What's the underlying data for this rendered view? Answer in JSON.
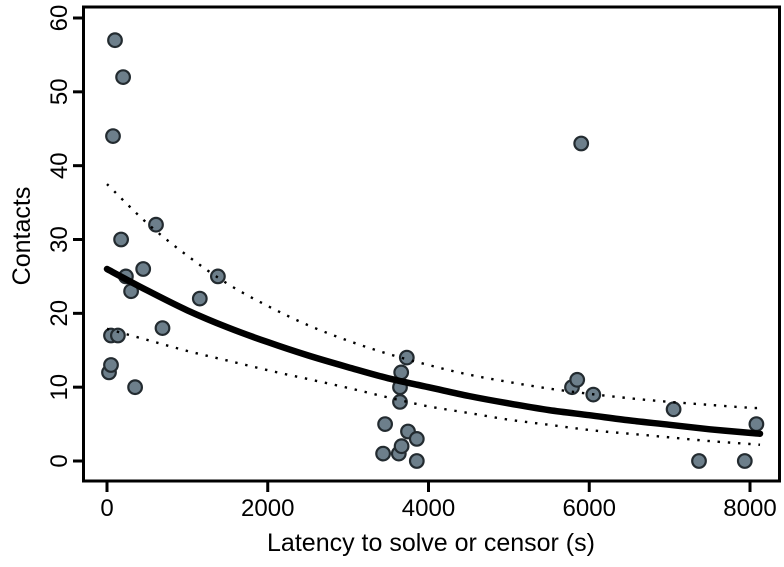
{
  "chart_data": {
    "type": "scatter",
    "title": "",
    "xlabel": "Latency to solve or censor (s)",
    "ylabel": "Contacts",
    "x_ticks": [
      0,
      2000,
      4000,
      6000,
      8000
    ],
    "y_ticks": [
      0,
      10,
      20,
      30,
      40,
      50,
      60
    ],
    "xlim": [
      -300,
      8380
    ],
    "ylim": [
      -2.8,
      61.6
    ],
    "grid": false,
    "legend": "none",
    "points": [
      [
        25,
        12
      ],
      [
        50,
        13
      ],
      [
        50,
        17
      ],
      [
        75,
        44
      ],
      [
        100,
        57
      ],
      [
        135,
        17
      ],
      [
        175,
        30
      ],
      [
        200,
        52
      ],
      [
        235,
        25
      ],
      [
        300,
        23
      ],
      [
        350,
        10
      ],
      [
        450,
        26
      ],
      [
        610,
        32
      ],
      [
        690,
        18
      ],
      [
        1155,
        22
      ],
      [
        1380,
        25
      ],
      [
        3435,
        1
      ],
      [
        3460,
        5
      ],
      [
        3630,
        1
      ],
      [
        3645,
        10
      ],
      [
        3645,
        8
      ],
      [
        3660,
        12
      ],
      [
        3665,
        2
      ],
      [
        3730,
        14
      ],
      [
        3745,
        4
      ],
      [
        3855,
        3
      ],
      [
        3855,
        0
      ],
      [
        5785,
        10
      ],
      [
        5850,
        11
      ],
      [
        5900,
        43
      ],
      [
        6050,
        9
      ],
      [
        7050,
        7
      ],
      [
        7365,
        0
      ],
      [
        7935,
        0
      ],
      [
        8080,
        5
      ]
    ],
    "series": [
      {
        "name": "exponential-fit",
        "style": "solid-thick",
        "points": [
          [
            0,
            26.0
          ],
          [
            500,
            23.1
          ],
          [
            1000,
            20.4
          ],
          [
            1500,
            18.1
          ],
          [
            2000,
            16.1
          ],
          [
            2500,
            14.3
          ],
          [
            3000,
            12.7
          ],
          [
            3500,
            11.2
          ],
          [
            4000,
            10.0
          ],
          [
            4500,
            8.8
          ],
          [
            5000,
            7.8
          ],
          [
            5500,
            6.9
          ],
          [
            6000,
            6.2
          ],
          [
            6500,
            5.5
          ],
          [
            7000,
            4.9
          ],
          [
            7500,
            4.3
          ],
          [
            8000,
            3.8
          ],
          [
            8125,
            3.7
          ]
        ]
      },
      {
        "name": "ci-upper",
        "style": "dotted",
        "points": [
          [
            0,
            37.5
          ],
          [
            500,
            32.2
          ],
          [
            1000,
            27.8
          ],
          [
            1500,
            24.0
          ],
          [
            2000,
            21.0
          ],
          [
            2500,
            18.4
          ],
          [
            3000,
            16.3
          ],
          [
            3500,
            14.5
          ],
          [
            4000,
            13.0
          ],
          [
            4500,
            11.7
          ],
          [
            5000,
            10.7
          ],
          [
            5500,
            9.8
          ],
          [
            6000,
            9.1
          ],
          [
            6500,
            8.5
          ],
          [
            7000,
            8.0
          ],
          [
            7500,
            7.6
          ],
          [
            8000,
            7.2
          ],
          [
            8125,
            7.2
          ]
        ]
      },
      {
        "name": "ci-lower",
        "style": "dotted",
        "points": [
          [
            0,
            17.9
          ],
          [
            500,
            16.4
          ],
          [
            1000,
            14.9
          ],
          [
            1500,
            13.6
          ],
          [
            2000,
            12.3
          ],
          [
            2500,
            11.1
          ],
          [
            3000,
            9.9
          ],
          [
            3500,
            8.6
          ],
          [
            4000,
            7.4
          ],
          [
            4500,
            6.5
          ],
          [
            5000,
            5.6
          ],
          [
            5500,
            4.9
          ],
          [
            6000,
            4.2
          ],
          [
            6500,
            3.7
          ],
          [
            7000,
            3.2
          ],
          [
            7500,
            2.7
          ],
          [
            8000,
            2.3
          ],
          [
            8125,
            2.2
          ]
        ]
      }
    ],
    "colors": {
      "point_fill": "#6d7f8b",
      "point_stroke": "#232b30",
      "curve": "#000000",
      "axis": "#000000",
      "background": "#ffffff"
    }
  }
}
